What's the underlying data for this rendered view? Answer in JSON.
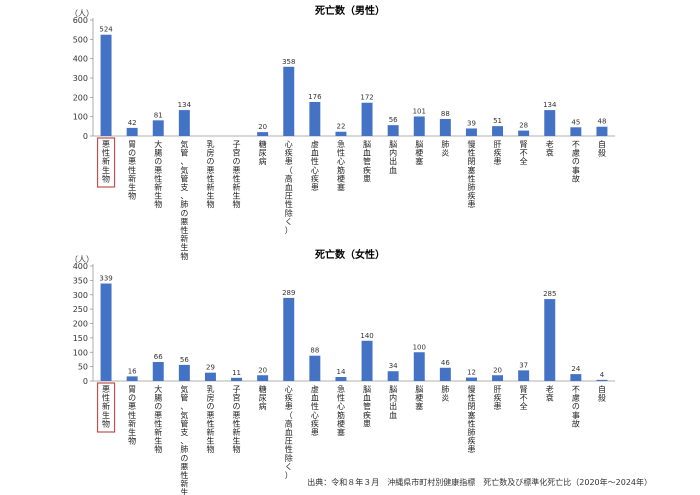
{
  "source_note": "出典：令和８年３月　沖縄県市町村別健康指標　死亡数及び標準化死亡比（2020年～2024年）",
  "chart_data": [
    {
      "type": "bar",
      "title": "死亡数（男性）",
      "ylabel": "（人）",
      "ylim": [
        0,
        600
      ],
      "yticks": [
        0,
        100,
        200,
        300,
        400,
        500,
        600
      ],
      "grid": false,
      "bar_color": "#4472C4",
      "highlight_color": "#C0504D",
      "highlight_category": "悪性新生物",
      "categories": [
        "悪性新生物",
        "胃の悪性新生物",
        "大腸の悪性新生物",
        "気管、気管支、肺の悪性新生物",
        "乳房の悪性新生物",
        "子宮の悪性新生物",
        "糖尿病",
        "心疾患（高血圧性除く）",
        "虚血性心疾患",
        "急性心筋梗塞",
        "脳血管疾患",
        "脳内出血",
        "脳梗塞",
        "肺炎",
        "慢性閉塞性肺疾患",
        "肝疾患",
        "腎不全",
        "老衰",
        "不慮の事故",
        "自殺"
      ],
      "values": [
        524,
        42,
        81,
        134,
        null,
        null,
        20,
        358,
        176,
        22,
        172,
        56,
        101,
        88,
        39,
        51,
        28,
        134,
        45,
        48
      ]
    },
    {
      "type": "bar",
      "title": "死亡数（女性）",
      "ylabel": "（人）",
      "ylim": [
        0,
        400
      ],
      "yticks": [
        0,
        50,
        100,
        150,
        200,
        250,
        300,
        350,
        400
      ],
      "grid": false,
      "bar_color": "#4472C4",
      "highlight_color": "#C0504D",
      "highlight_category": "悪性新生物",
      "categories": [
        "悪性新生物",
        "胃の悪性新生物",
        "大腸の悪性新生物",
        "気管、気管支、肺の悪性新生物",
        "乳房の悪性新生物",
        "子宮の悪性新生物",
        "糖尿病",
        "心疾患（高血圧性除く）",
        "虚血性心疾患",
        "急性心筋梗塞",
        "脳血管疾患",
        "脳内出血",
        "脳梗塞",
        "肺炎",
        "慢性閉塞性肺疾患",
        "肝疾患",
        "腎不全",
        "老衰",
        "不慮の事故",
        "自殺"
      ],
      "values": [
        339,
        16,
        66,
        56,
        29,
        11,
        20,
        289,
        88,
        14,
        140,
        34,
        100,
        46,
        12,
        20,
        37,
        285,
        24,
        4
      ]
    }
  ]
}
